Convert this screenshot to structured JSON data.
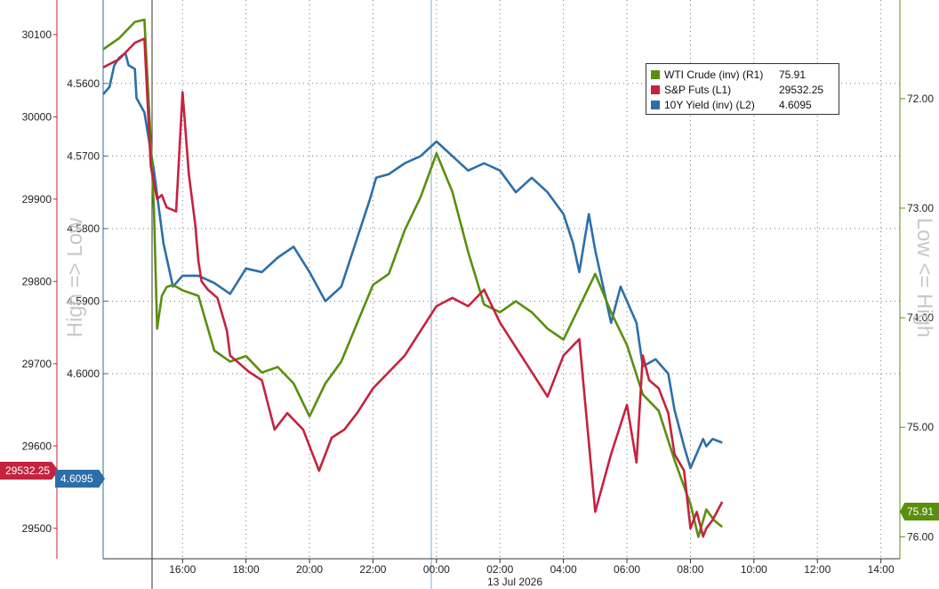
{
  "chart_data": {
    "type": "line",
    "date_label": "13 Jul 2026",
    "x_ticks": [
      "16:00",
      "18:00",
      "20:00",
      "22:00",
      "00:00",
      "02:00",
      "04:00",
      "06:00",
      "08:00",
      "10:00",
      "12:00",
      "14:00"
    ],
    "left_axis_outer": {
      "title": "",
      "ticks": [
        30100,
        30000,
        29900,
        29800,
        29700,
        29600,
        29500
      ],
      "ylim": [
        29463,
        30142
      ]
    },
    "left_axis_inner": {
      "title": "High => Low",
      "ticks": [
        "4.5600",
        "4.5700",
        "4.5800",
        "4.5900",
        "4.6000"
      ],
      "ylim": [
        4.5485,
        4.6255
      ],
      "inverted": true
    },
    "right_axis": {
      "title": "Low <= High",
      "ticks": [
        "72.00",
        "73.00",
        "74.00",
        "75.00",
        "76.00"
      ],
      "ylim": [
        71.1,
        76.2
      ],
      "inverted": true
    },
    "series": [
      {
        "name": "WTI Crude (inv) (R1)",
        "last": "75.91",
        "color": "#5a8f0e",
        "axis": "right",
        "x": [
          0.0,
          0.5,
          1.0,
          1.3,
          1.5,
          1.6,
          1.7,
          1.85,
          2.0,
          2.2,
          2.5,
          3.0,
          3.5,
          4.0,
          4.5,
          5.0,
          5.5,
          6.0,
          6.5,
          7.0,
          7.5,
          8.0,
          8.5,
          9.0,
          9.5,
          10.0,
          10.5,
          11.0,
          11.5,
          12.0,
          12.5,
          13.0,
          13.5,
          14.0,
          14.5,
          15.0,
          15.5,
          16.0,
          16.5,
          17.0,
          17.5,
          18.0,
          18.25,
          18.5,
          18.75,
          19.0,
          19.25,
          19.5
        ],
        "values": [
          71.55,
          71.45,
          71.3,
          71.28,
          72.4,
          73.0,
          74.1,
          73.8,
          73.72,
          73.7,
          73.75,
          73.8,
          74.3,
          74.4,
          74.35,
          74.5,
          74.45,
          74.6,
          74.9,
          74.6,
          74.4,
          74.05,
          73.7,
          73.6,
          73.2,
          72.9,
          72.5,
          72.85,
          73.4,
          73.88,
          73.95,
          73.85,
          73.95,
          74.1,
          74.2,
          73.9,
          73.6,
          73.95,
          74.25,
          74.7,
          74.85,
          75.3,
          75.5,
          75.7,
          76.0,
          75.75,
          75.85,
          75.91
        ]
      },
      {
        "name": "S&P Futs (L1)",
        "last": "29532.25",
        "color": "#c4233e",
        "axis": "left_outer",
        "x": [
          0.0,
          0.5,
          1.0,
          1.3,
          1.5,
          1.7,
          1.85,
          2.0,
          2.3,
          2.5,
          2.7,
          2.9,
          3.0,
          3.1,
          3.3,
          3.6,
          3.9,
          4.0,
          4.3,
          4.6,
          5.0,
          5.4,
          5.8,
          6.3,
          6.8,
          7.2,
          7.6,
          8.0,
          8.5,
          9.0,
          9.5,
          10.0,
          10.5,
          11.0,
          11.5,
          12.0,
          12.5,
          13.0,
          13.5,
          14.0,
          14.5,
          15.0,
          15.5,
          16.0,
          16.5,
          16.8,
          17.0,
          17.2,
          17.5,
          17.8,
          18.0,
          18.3,
          18.5,
          18.7,
          18.9,
          19.0,
          19.2,
          19.5
        ],
        "values": [
          30060,
          30070,
          30090,
          30095,
          29940,
          29900,
          29905,
          29890,
          29885,
          30030,
          29930,
          29870,
          29825,
          29800,
          29790,
          29780,
          29740,
          29710,
          29700,
          29690,
          29680,
          29620,
          29640,
          29620,
          29570,
          29610,
          29620,
          29640,
          29670,
          29690,
          29710,
          29740,
          29770,
          29780,
          29770,
          29790,
          29750,
          29720,
          29690,
          29660,
          29710,
          29730,
          29520,
          29590,
          29650,
          29580,
          29710,
          29680,
          29670,
          29640,
          29590,
          29570,
          29500,
          29520,
          29490,
          29500,
          29510,
          29532.25
        ]
      },
      {
        "name": "10Y Yield (inv) (L2)",
        "last": "4.6095",
        "color": "#2c6fa8",
        "axis": "left_inner",
        "x": [
          0.0,
          0.2,
          0.35,
          0.5,
          0.7,
          0.8,
          1.0,
          1.05,
          1.3,
          1.6,
          1.9,
          2.2,
          2.5,
          3.0,
          3.5,
          4.0,
          4.5,
          5.0,
          5.5,
          6.0,
          6.5,
          7.0,
          7.5,
          7.8,
          8.1,
          8.4,
          8.6,
          9.0,
          9.5,
          10.0,
          10.5,
          11.0,
          11.5,
          12.0,
          12.5,
          13.0,
          13.5,
          14.0,
          14.5,
          14.8,
          15.0,
          15.3,
          15.5,
          15.8,
          16.0,
          16.3,
          16.5,
          16.8,
          17.0,
          17.4,
          17.8,
          18.0,
          18.3,
          18.5,
          18.7,
          18.9,
          19.0,
          19.2,
          19.5
        ],
        "values": [
          4.5615,
          4.5605,
          4.5575,
          4.5565,
          4.5558,
          4.5575,
          4.558,
          4.562,
          4.564,
          4.572,
          4.582,
          4.588,
          4.5865,
          4.5865,
          4.5875,
          4.589,
          4.5855,
          4.586,
          4.584,
          4.5825,
          4.586,
          4.59,
          4.588,
          4.584,
          4.58,
          4.576,
          4.573,
          4.5725,
          4.571,
          4.57,
          4.568,
          4.57,
          4.572,
          4.571,
          4.572,
          4.575,
          4.573,
          4.575,
          4.578,
          4.582,
          4.586,
          4.578,
          4.583,
          4.589,
          4.593,
          4.588,
          4.59,
          4.593,
          4.599,
          4.598,
          4.6,
          4.605,
          4.61,
          4.613,
          4.611,
          4.609,
          4.61,
          4.609,
          4.6095
        ]
      }
    ]
  },
  "tags": {
    "sp_last": "29532.25",
    "yield_last": "4.6095",
    "wti_last": "75.91"
  },
  "colors": {
    "wti": "#5a8f0e",
    "sp": "#c4233e",
    "yield": "#2c6fa8"
  }
}
